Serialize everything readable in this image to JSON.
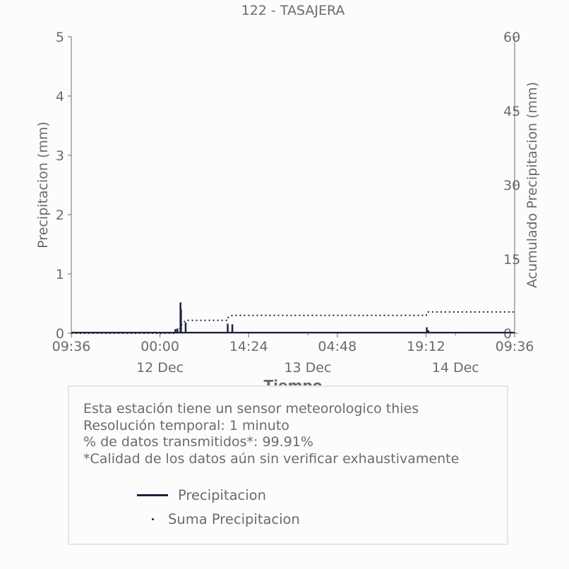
{
  "chart_data": {
    "type": "line",
    "title": "122 - TASAJERA",
    "xlabel": "Tiempo",
    "ylabel_left": "Precipitacion (mm)",
    "ylabel_right": "Acumulado Precipitacion (mm)",
    "ylim_left": [
      0,
      5
    ],
    "ylim_right": [
      0,
      60
    ],
    "yticks_left": [
      "0",
      "1",
      "2",
      "3",
      "4",
      "5"
    ],
    "yticks_right": [
      "0",
      "15",
      "30",
      "45",
      "60"
    ],
    "yticks_right_values": [
      0,
      15,
      30,
      45,
      60
    ],
    "x_start": "2023-12-11 09:36",
    "x_end": "2023-12-14 09:36",
    "xticks": [
      {
        "time": "2023-12-11 09:36",
        "label": "09:36"
      },
      {
        "time": "2023-12-12 00:00",
        "label": "00:00"
      },
      {
        "time": "2023-12-12 14:24",
        "label": "14:24"
      },
      {
        "time": "2023-12-13 04:48",
        "label": "04:48"
      },
      {
        "time": "2023-12-13 19:12",
        "label": "19:12"
      },
      {
        "time": "2023-12-14 09:36",
        "label": "09:36"
      }
    ],
    "date_labels": [
      {
        "time": "2023-12-12 00:00",
        "label": "12 Dec"
      },
      {
        "time": "2023-12-13 00:00",
        "label": "13 Dec"
      },
      {
        "time": "2023-12-14 00:00",
        "label": "14 Dec"
      }
    ],
    "series": [
      {
        "name": "Precipitacion",
        "style": "solid",
        "color": "#1f2142",
        "points": [
          [
            "2023-12-12 02:30",
            0.07
          ],
          [
            "2023-12-12 02:50",
            0.08
          ],
          [
            "2023-12-12 03:20",
            0.52
          ],
          [
            "2023-12-12 03:25",
            0.4
          ],
          [
            "2023-12-12 04:10",
            0.18
          ],
          [
            "2023-12-12 11:00",
            0.16
          ],
          [
            "2023-12-12 11:45",
            0.15
          ],
          [
            "2023-12-13 19:20",
            0.1
          ],
          [
            "2023-12-13 19:35",
            0.05
          ],
          [
            "2023-12-14 06:45",
            0.02
          ]
        ]
      },
      {
        "name": "Suma Precipitacion",
        "style": "dotted",
        "color": "#1f2142",
        "points": [
          [
            "2023-12-11 09:36",
            0
          ],
          [
            "2023-12-12 02:25",
            0
          ],
          [
            "2023-12-12 02:30",
            0.1
          ],
          [
            "2023-12-12 03:15",
            0.8
          ],
          [
            "2023-12-12 03:20",
            1.5
          ],
          [
            "2023-12-12 04:10",
            2.6
          ],
          [
            "2023-12-12 04:15",
            2.6
          ],
          [
            "2023-12-12 11:00",
            2.6
          ],
          [
            "2023-12-12 11:05",
            3.2
          ],
          [
            "2023-12-12 11:45",
            3.6
          ],
          [
            "2023-12-12 12:00",
            3.6
          ],
          [
            "2023-12-13 19:15",
            3.6
          ],
          [
            "2023-12-13 19:20",
            4.2
          ],
          [
            "2023-12-13 19:35",
            4.3
          ],
          [
            "2023-12-14 09:36",
            4.3
          ]
        ]
      }
    ],
    "grid": false,
    "legend_position": "bottom"
  },
  "info": {
    "lines": [
      "Esta estación tiene un sensor meteorologico thies",
      "Resolución temporal: 1 minuto",
      "% de datos transmitidos*: 99.91%",
      "*Calidad de los datos aún sin verificar exhaustivamente"
    ]
  },
  "legend": {
    "items": [
      {
        "label": "Precipitacion"
      },
      {
        "label": "Suma Precipitacion"
      }
    ]
  }
}
